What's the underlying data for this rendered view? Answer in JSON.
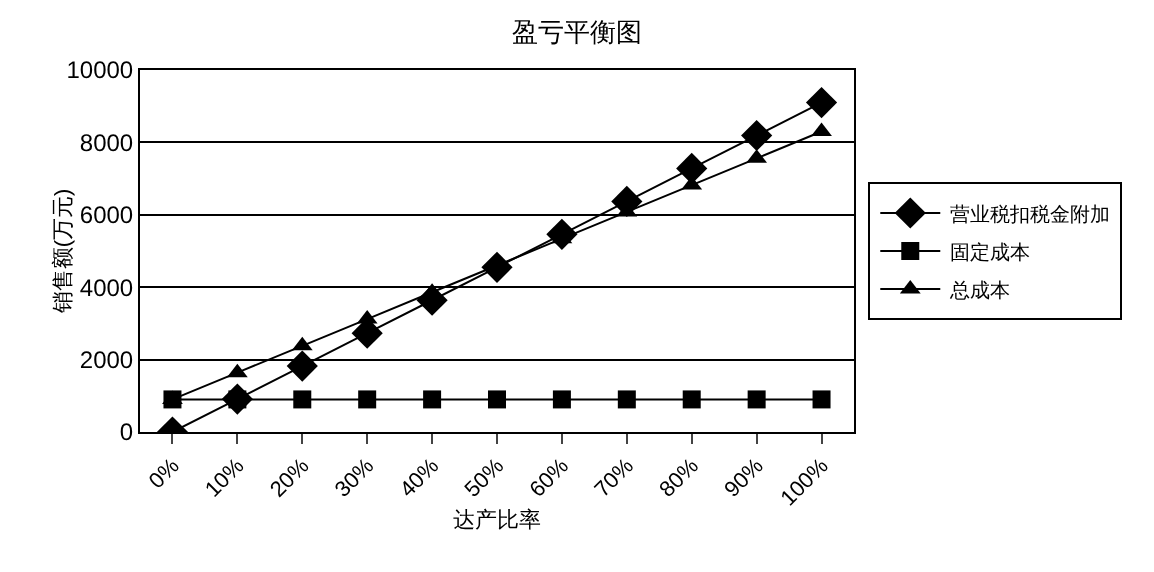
{
  "chart_data": {
    "type": "line",
    "title": "盈亏平衡图",
    "xlabel": "达产比率",
    "ylabel": "销售额(万元)",
    "categories": [
      "0%",
      "10%",
      "20%",
      "30%",
      "40%",
      "50%",
      "60%",
      "70%",
      "80%",
      "90%",
      "100%"
    ],
    "series": [
      {
        "name": "营业税扣税金附加",
        "color": "#000000",
        "marker": "diamond",
        "values": [
          0,
          910,
          1820,
          2730,
          3640,
          4550,
          5460,
          6370,
          7280,
          8190,
          9100
        ]
      },
      {
        "name": "固定成本",
        "color": "#000000",
        "marker": "square",
        "values": [
          900,
          900,
          900,
          900,
          900,
          900,
          900,
          900,
          900,
          900,
          900
        ]
      },
      {
        "name": "总成本",
        "color": "#000000",
        "marker": "triangle",
        "values": [
          900,
          1640,
          2380,
          3120,
          3860,
          4600,
          5340,
          6080,
          6820,
          7560,
          8300
        ]
      }
    ],
    "ylim": [
      0,
      10000
    ],
    "yticks": [
      0,
      2000,
      4000,
      6000,
      8000,
      10000
    ],
    "grid": "y",
    "legend": "right",
    "line_style": "solid"
  }
}
